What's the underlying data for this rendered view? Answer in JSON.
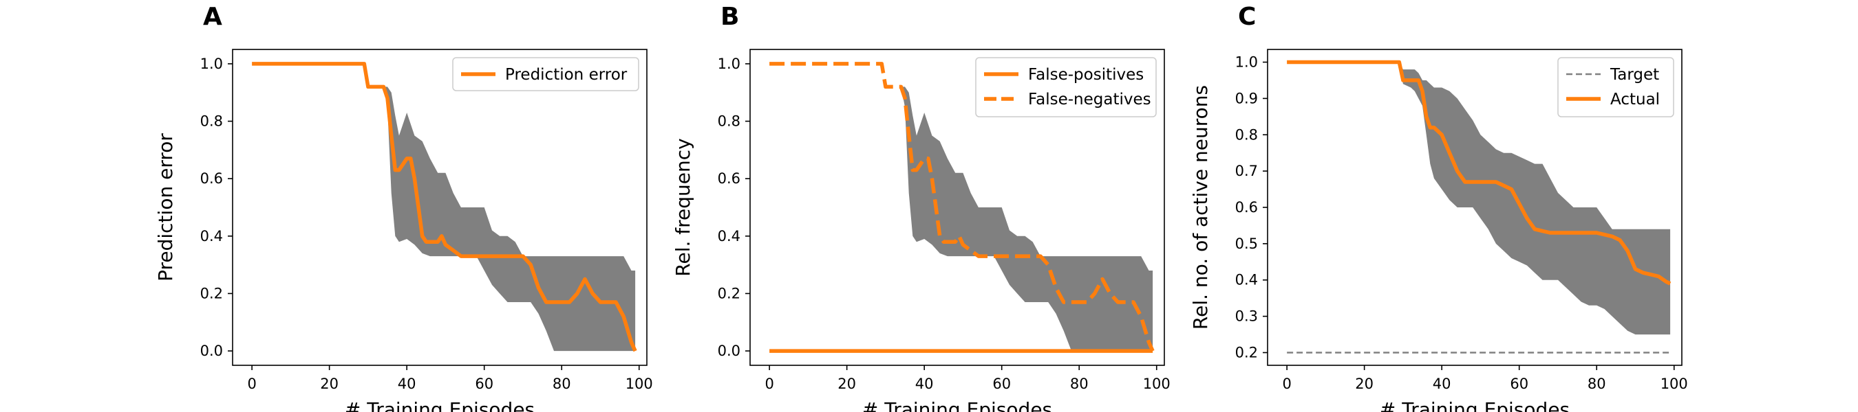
{
  "figure": {
    "background": "#ffffff"
  },
  "colors": {
    "line": "#ff7f0e",
    "band": "#808080",
    "target": "#808080",
    "axes": "#000000"
  },
  "chart_data": [
    {
      "type": "line",
      "panel_label": "A",
      "xlabel": "# Training Episodes",
      "ylabel": "Prediction error",
      "xlim": [
        -5,
        102
      ],
      "ylim": [
        -0.05,
        1.05
      ],
      "xticks": [
        0,
        20,
        40,
        60,
        80,
        100
      ],
      "xtick_labels": [
        "0",
        "20",
        "40",
        "60",
        "80",
        "100"
      ],
      "yticks": [
        0.0,
        0.2,
        0.4,
        0.6,
        0.8,
        1.0
      ],
      "ytick_labels": [
        "0.0",
        "0.2",
        "0.4",
        "0.6",
        "0.8",
        "1.0"
      ],
      "legend_placement": "top-right",
      "band": {
        "x": [
          0,
          29,
          30,
          34,
          35,
          36,
          37,
          38,
          40,
          42,
          44,
          46,
          48,
          50,
          52,
          54,
          56,
          58,
          60,
          62,
          64,
          66,
          68,
          70,
          72,
          74,
          76,
          78,
          80,
          82,
          84,
          86,
          88,
          90,
          92,
          94,
          96,
          98,
          99
        ],
        "upper": [
          1.0,
          1.0,
          0.92,
          0.92,
          0.92,
          0.9,
          0.82,
          0.75,
          0.83,
          0.75,
          0.73,
          0.67,
          0.62,
          0.62,
          0.55,
          0.5,
          0.5,
          0.5,
          0.5,
          0.42,
          0.4,
          0.4,
          0.38,
          0.33,
          0.33,
          0.33,
          0.33,
          0.33,
          0.33,
          0.33,
          0.33,
          0.33,
          0.33,
          0.33,
          0.33,
          0.33,
          0.33,
          0.28,
          0.28
        ],
        "lower": [
          1.0,
          1.0,
          0.92,
          0.92,
          0.85,
          0.55,
          0.4,
          0.38,
          0.39,
          0.37,
          0.34,
          0.33,
          0.33,
          0.33,
          0.33,
          0.33,
          0.33,
          0.33,
          0.28,
          0.23,
          0.2,
          0.17,
          0.17,
          0.17,
          0.17,
          0.13,
          0.07,
          0.0,
          0.0,
          0.0,
          0.0,
          0.0,
          0.0,
          0.0,
          0.0,
          0.0,
          0.0,
          0.0,
          0.0
        ]
      },
      "series": [
        {
          "name": "Prediction error",
          "style": "solid",
          "x": [
            0,
            29,
            30,
            33,
            34,
            35,
            36,
            37,
            38,
            40,
            41,
            42,
            43,
            44,
            45,
            46,
            48,
            49,
            50,
            52,
            54,
            56,
            58,
            60,
            62,
            64,
            66,
            68,
            70,
            72,
            74,
            76,
            78,
            80,
            82,
            84,
            86,
            88,
            90,
            92,
            94,
            96,
            98,
            99
          ],
          "y": [
            1.0,
            1.0,
            0.92,
            0.92,
            0.92,
            0.88,
            0.75,
            0.63,
            0.63,
            0.67,
            0.67,
            0.6,
            0.5,
            0.4,
            0.38,
            0.38,
            0.38,
            0.4,
            0.37,
            0.35,
            0.33,
            0.33,
            0.33,
            0.33,
            0.33,
            0.33,
            0.33,
            0.33,
            0.33,
            0.3,
            0.22,
            0.17,
            0.17,
            0.17,
            0.17,
            0.2,
            0.25,
            0.2,
            0.17,
            0.17,
            0.17,
            0.12,
            0.03,
            0.0
          ]
        }
      ]
    },
    {
      "type": "line",
      "panel_label": "B",
      "xlabel": "# Training Episodes",
      "ylabel": "Rel. frequency",
      "xlim": [
        -5,
        102
      ],
      "ylim": [
        -0.05,
        1.05
      ],
      "xticks": [
        0,
        20,
        40,
        60,
        80,
        100
      ],
      "xtick_labels": [
        "0",
        "20",
        "40",
        "60",
        "80",
        "100"
      ],
      "yticks": [
        0.0,
        0.2,
        0.4,
        0.6,
        0.8,
        1.0
      ],
      "ytick_labels": [
        "0.0",
        "0.2",
        "0.4",
        "0.6",
        "0.8",
        "1.0"
      ],
      "legend_placement": "top-right",
      "band": {
        "x": [
          0,
          29,
          30,
          34,
          35,
          36,
          37,
          38,
          40,
          42,
          44,
          46,
          48,
          50,
          52,
          54,
          56,
          58,
          60,
          62,
          64,
          66,
          68,
          70,
          72,
          74,
          76,
          78,
          80,
          82,
          84,
          86,
          88,
          90,
          92,
          94,
          96,
          98,
          99
        ],
        "upper": [
          1.0,
          1.0,
          0.92,
          0.92,
          0.92,
          0.9,
          0.82,
          0.75,
          0.83,
          0.75,
          0.73,
          0.67,
          0.62,
          0.62,
          0.55,
          0.5,
          0.5,
          0.5,
          0.5,
          0.42,
          0.4,
          0.4,
          0.38,
          0.33,
          0.33,
          0.33,
          0.33,
          0.33,
          0.33,
          0.33,
          0.33,
          0.33,
          0.33,
          0.33,
          0.33,
          0.33,
          0.33,
          0.28,
          0.28
        ],
        "lower": [
          1.0,
          1.0,
          0.92,
          0.92,
          0.85,
          0.55,
          0.4,
          0.38,
          0.39,
          0.37,
          0.34,
          0.33,
          0.33,
          0.33,
          0.33,
          0.33,
          0.33,
          0.33,
          0.28,
          0.23,
          0.2,
          0.17,
          0.17,
          0.17,
          0.17,
          0.13,
          0.07,
          0.0,
          0.0,
          0.0,
          0.0,
          0.0,
          0.0,
          0.0,
          0.0,
          0.0,
          0.0,
          0.0,
          0.0
        ]
      },
      "series": [
        {
          "name": "False-positives",
          "style": "solid",
          "x": [
            0,
            99
          ],
          "y": [
            0.0,
            0.0
          ]
        },
        {
          "name": "False-negatives",
          "style": "dashed",
          "x": [
            0,
            29,
            30,
            33,
            34,
            35,
            36,
            37,
            38,
            40,
            41,
            42,
            43,
            44,
            45,
            46,
            48,
            49,
            50,
            52,
            54,
            56,
            58,
            60,
            62,
            64,
            66,
            68,
            70,
            72,
            74,
            76,
            78,
            80,
            82,
            84,
            86,
            88,
            90,
            92,
            94,
            96,
            98,
            99
          ],
          "y": [
            1.0,
            1.0,
            0.92,
            0.92,
            0.92,
            0.88,
            0.75,
            0.63,
            0.63,
            0.67,
            0.67,
            0.6,
            0.5,
            0.4,
            0.38,
            0.38,
            0.38,
            0.4,
            0.37,
            0.35,
            0.33,
            0.33,
            0.33,
            0.33,
            0.33,
            0.33,
            0.33,
            0.33,
            0.33,
            0.3,
            0.22,
            0.17,
            0.17,
            0.17,
            0.17,
            0.2,
            0.25,
            0.2,
            0.17,
            0.17,
            0.17,
            0.12,
            0.03,
            0.0
          ]
        }
      ]
    },
    {
      "type": "line",
      "panel_label": "C",
      "xlabel": "# Training Episodes",
      "ylabel": "Rel. no. of active neurons",
      "xlim": [
        -5,
        102
      ],
      "ylim": [
        0.165,
        1.035
      ],
      "xticks": [
        0,
        20,
        40,
        60,
        80,
        100
      ],
      "xtick_labels": [
        "0",
        "20",
        "40",
        "60",
        "80",
        "100"
      ],
      "yticks": [
        0.2,
        0.3,
        0.4,
        0.5,
        0.6,
        0.7,
        0.8,
        0.9,
        1.0
      ],
      "ytick_labels": [
        "0.2",
        "0.3",
        "0.4",
        "0.5",
        "0.6",
        "0.7",
        "0.8",
        "0.9",
        "1.0"
      ],
      "legend_placement": "top-right",
      "band": {
        "x": [
          0,
          29,
          30,
          32,
          33,
          34,
          35,
          36,
          37,
          38,
          40,
          42,
          44,
          46,
          48,
          50,
          52,
          54,
          56,
          58,
          60,
          62,
          64,
          66,
          68,
          70,
          72,
          74,
          76,
          78,
          80,
          82,
          84,
          86,
          88,
          90,
          92,
          94,
          96,
          98,
          99
        ],
        "upper": [
          1.0,
          1.0,
          0.98,
          0.98,
          0.98,
          0.97,
          0.95,
          0.95,
          0.94,
          0.93,
          0.93,
          0.92,
          0.9,
          0.87,
          0.84,
          0.8,
          0.78,
          0.76,
          0.75,
          0.75,
          0.74,
          0.73,
          0.72,
          0.72,
          0.68,
          0.64,
          0.62,
          0.6,
          0.6,
          0.6,
          0.6,
          0.57,
          0.54,
          0.54,
          0.54,
          0.54,
          0.54,
          0.54,
          0.54,
          0.54,
          0.54
        ],
        "lower": [
          1.0,
          1.0,
          0.94,
          0.93,
          0.92,
          0.9,
          0.88,
          0.8,
          0.72,
          0.68,
          0.65,
          0.62,
          0.6,
          0.6,
          0.6,
          0.57,
          0.54,
          0.5,
          0.48,
          0.46,
          0.45,
          0.44,
          0.42,
          0.4,
          0.4,
          0.4,
          0.38,
          0.36,
          0.34,
          0.33,
          0.33,
          0.32,
          0.3,
          0.28,
          0.26,
          0.25,
          0.25,
          0.25,
          0.25,
          0.25,
          0.25
        ]
      },
      "target": {
        "name": "Target",
        "style": "dashed",
        "y": 0.2,
        "x": [
          0,
          99
        ]
      },
      "series": [
        {
          "name": "Actual",
          "style": "solid",
          "x": [
            0,
            29,
            30,
            32,
            33,
            34,
            35,
            36,
            37,
            38,
            40,
            42,
            44,
            46,
            48,
            50,
            52,
            54,
            56,
            58,
            60,
            62,
            64,
            66,
            68,
            70,
            72,
            74,
            76,
            78,
            80,
            82,
            84,
            86,
            88,
            90,
            92,
            94,
            96,
            98,
            99
          ],
          "y": [
            1.0,
            1.0,
            0.95,
            0.95,
            0.95,
            0.95,
            0.92,
            0.85,
            0.82,
            0.82,
            0.8,
            0.75,
            0.7,
            0.67,
            0.67,
            0.67,
            0.67,
            0.67,
            0.66,
            0.65,
            0.61,
            0.57,
            0.54,
            0.535,
            0.53,
            0.53,
            0.53,
            0.53,
            0.53,
            0.53,
            0.53,
            0.525,
            0.52,
            0.51,
            0.48,
            0.43,
            0.42,
            0.415,
            0.41,
            0.395,
            0.39
          ]
        }
      ]
    }
  ]
}
